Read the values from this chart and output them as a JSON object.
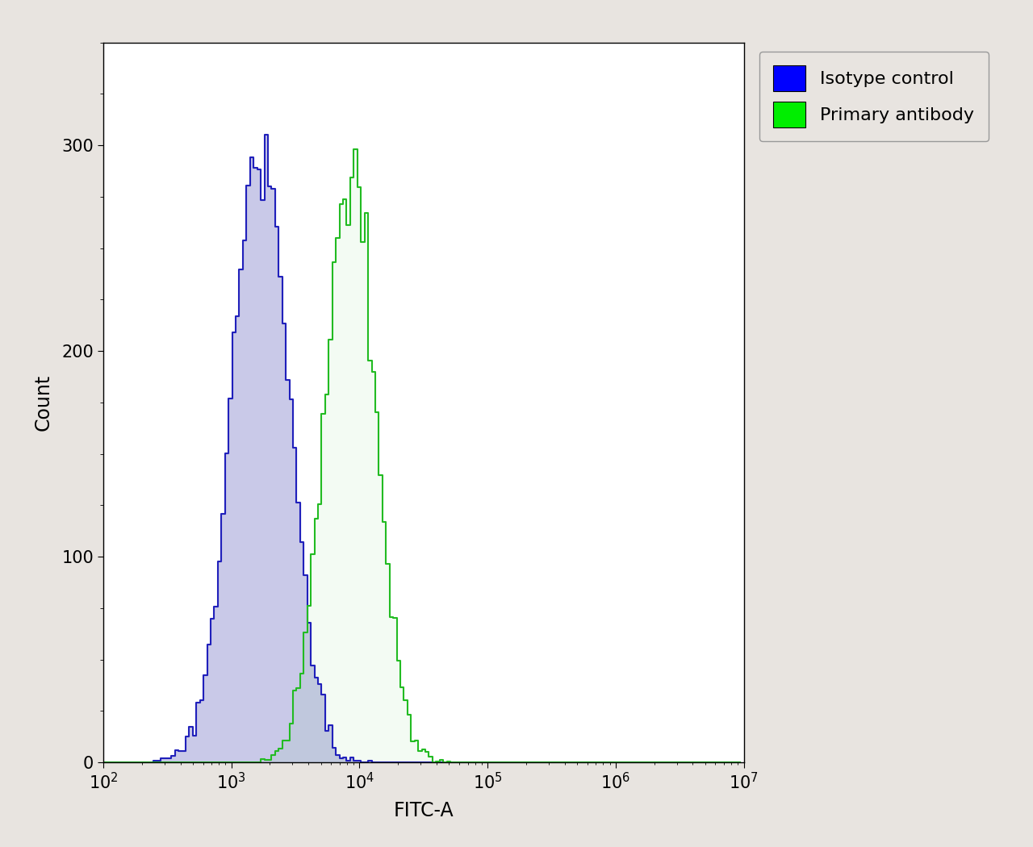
{
  "title": "",
  "xlabel": "FITC-A",
  "ylabel": "Count",
  "xlim": [
    100,
    10000000.0
  ],
  "ylim": [
    0,
    350
  ],
  "yticks": [
    0,
    100,
    200,
    300
  ],
  "figure_bg_color": "#e8e4e0",
  "plot_bg_color": "#ffffff",
  "isotype_line_color": "#2020bb",
  "isotype_fill_color": "#8888cc",
  "isotype_fill_alpha": 0.45,
  "primary_line_color": "#22bb22",
  "primary_fill_alpha": 0.05,
  "legend_labels": [
    "Isotype control",
    "Primary antibody"
  ],
  "legend_face_colors": [
    "#0000ff",
    "#00ee00"
  ],
  "isotype_peak_x": 1700,
  "isotype_peak_y": 305,
  "isotype_log_std": 0.22,
  "primary_peak_x": 8500,
  "primary_peak_y": 298,
  "primary_log_std": 0.2,
  "n_bins": 180,
  "n_events": 10000,
  "font_size": 17,
  "tick_font_size": 15,
  "line_width": 1.5
}
